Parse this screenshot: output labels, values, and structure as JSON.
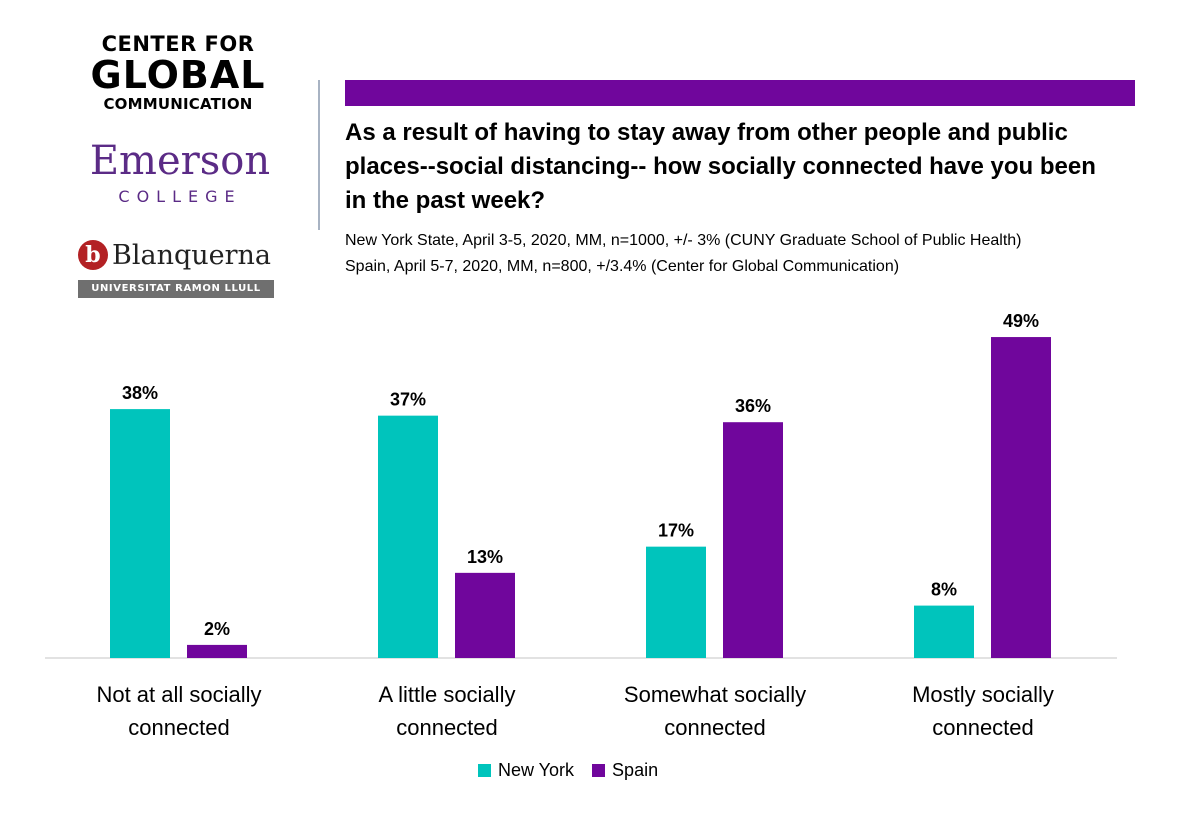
{
  "logos": {
    "cgc": {
      "line1": "CENTER FOR",
      "line2": "GLOBAL",
      "line3": "COMMUNICATION"
    },
    "emerson": {
      "name": "Emerson",
      "sub": "COLLEGE"
    },
    "blanquerna": {
      "mark": "b",
      "name": "Blanquerna",
      "sub": "UNIVERSITAT RAMON LLULL"
    }
  },
  "header": {
    "title": "As a result of having to stay away from other people and public places--social distancing-- how socially connected have you been in the past week?",
    "subtitle_lines": [
      "New York State, April 3-5, 2020, MM, n=1000, +/- 3% (CUNY Graduate School of Public Health)",
      "Spain, April 5-7, 2020, MM, n=800, +/3.4% (Center for Global Communication)"
    ]
  },
  "colors": {
    "new_york": "#00c4bc",
    "spain": "#70069c",
    "band": "#70069c",
    "axis": "#d9d9d9"
  },
  "chart_data": {
    "type": "bar",
    "categories": [
      [
        "Not at all socially",
        "connected"
      ],
      [
        "A little socially",
        "connected"
      ],
      [
        "Somewhat socially",
        "connected"
      ],
      [
        "Mostly socially",
        "connected"
      ]
    ],
    "series": [
      {
        "name": "New York",
        "values": [
          38,
          37,
          17,
          8
        ]
      },
      {
        "name": "Spain",
        "values": [
          2,
          13,
          36,
          49
        ]
      }
    ],
    "value_suffix": "%",
    "ylim": [
      0,
      50
    ],
    "legend": "bottom",
    "grid": false
  }
}
